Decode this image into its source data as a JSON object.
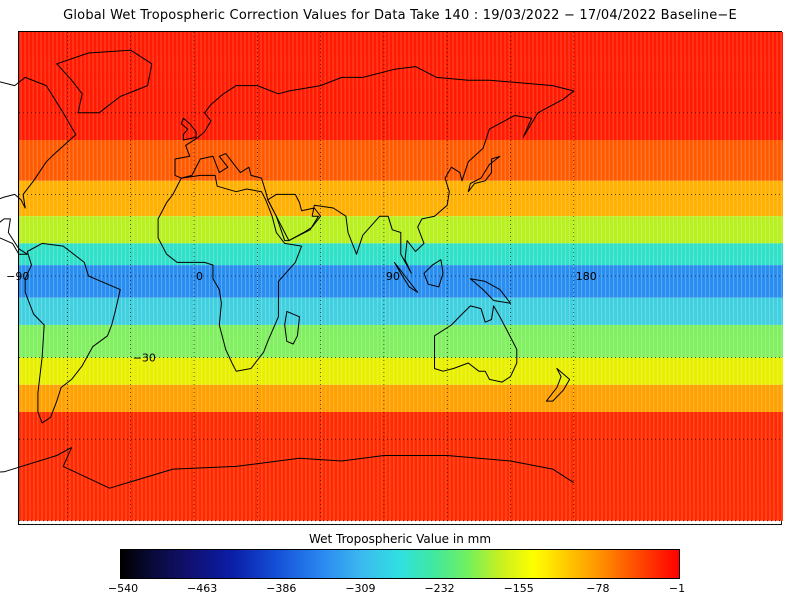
{
  "title": "Global Wet Tropospheric Correction Values for Data Take 140 : 19/03/2022 − 17/04/2022 Baseline−E",
  "map": {
    "longitude_labels": [
      {
        "lon": -90,
        "text": "−90"
      },
      {
        "lon": 0,
        "text": "0"
      },
      {
        "lon": 90,
        "text": "90"
      },
      {
        "lon": 180,
        "text": "180"
      }
    ],
    "latitude_labels": [
      {
        "lat": -30,
        "text": "−30"
      }
    ],
    "graticule_step_deg": 30,
    "value_bands": [
      {
        "lat_min": 50,
        "lat_max": 90,
        "value_mm": -20,
        "color": "#ff1a00"
      },
      {
        "lat_min": 35,
        "lat_max": 50,
        "value_mm": -70,
        "color": "#ff5a00"
      },
      {
        "lat_min": 22,
        "lat_max": 35,
        "value_mm": -120,
        "color": "#ffb000"
      },
      {
        "lat_min": 12,
        "lat_max": 22,
        "value_mm": -190,
        "color": "#b8f020"
      },
      {
        "lat_min": 4,
        "lat_max": 12,
        "value_mm": -270,
        "color": "#30e0c8"
      },
      {
        "lat_min": -8,
        "lat_max": 4,
        "value_mm": -330,
        "color": "#2a8ef0"
      },
      {
        "lat_min": -18,
        "lat_max": -8,
        "value_mm": -280,
        "color": "#40d0e0"
      },
      {
        "lat_min": -30,
        "lat_max": -18,
        "value_mm": -210,
        "color": "#80f060"
      },
      {
        "lat_min": -40,
        "lat_max": -30,
        "value_mm": -150,
        "color": "#e8f000"
      },
      {
        "lat_min": -50,
        "lat_max": -40,
        "value_mm": -90,
        "color": "#ffa000"
      },
      {
        "lat_min": -90,
        "lat_max": -50,
        "value_mm": -30,
        "color": "#ff2a00"
      }
    ]
  },
  "colorbar": {
    "title": "Wet Tropospheric Value in mm",
    "min": -540,
    "max": -1,
    "tick_labels": [
      "−540",
      "−463",
      "−386",
      "−309",
      "−232",
      "−155",
      "−78",
      "−1"
    ]
  }
}
